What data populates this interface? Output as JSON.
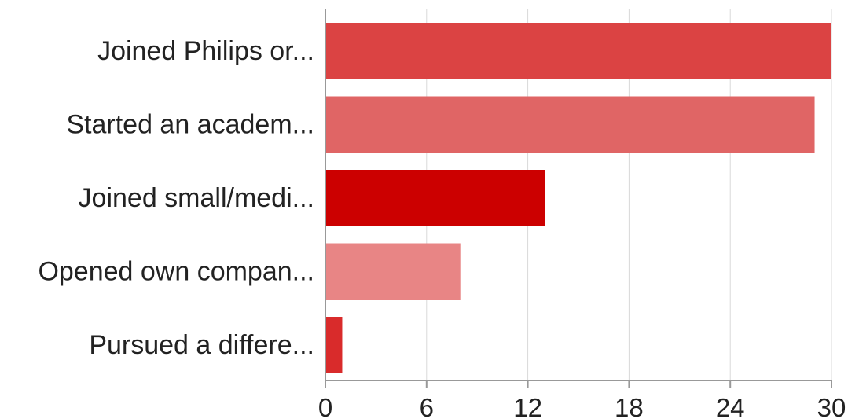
{
  "chart_data": {
    "type": "bar",
    "orientation": "horizontal",
    "categories": [
      "Joined Philips or...",
      "Started an academ...",
      "Joined small/medi...",
      "Opened own compan...",
      "Pursued a differe..."
    ],
    "values": [
      30,
      29,
      13,
      8,
      1
    ],
    "bar_colors": [
      "#db4343",
      "#e06565",
      "#cc0000",
      "#e88585",
      "#d92b2b"
    ],
    "xlim": [
      0,
      30
    ],
    "xticks": [
      0,
      6,
      12,
      18,
      24,
      30
    ],
    "title": "",
    "xlabel": "",
    "ylabel": "",
    "grid": true,
    "legend": "none"
  }
}
